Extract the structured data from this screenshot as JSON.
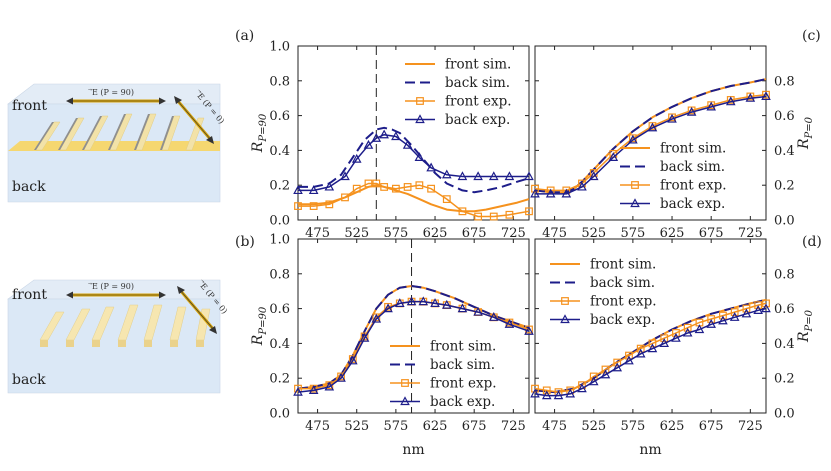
{
  "illustrations": [
    {
      "front_label": "front",
      "back_label": "back",
      "arrow_h_label": "⃗E (P = 90)",
      "arrow_d_label": "⃗E (P = 0)",
      "style": "embedded"
    },
    {
      "front_label": "front",
      "back_label": "back",
      "arrow_h_label": "⃗E (P = 90)",
      "arrow_d_label": "⃗E (P = 0)",
      "style": "raised"
    }
  ],
  "colors": {
    "front": "#f5921e",
    "back": "#1d1d8a",
    "axes": "#222222"
  },
  "chart_data": [
    {
      "panel": "(a)",
      "type": "line",
      "xlabel": "",
      "ylabel": "R_{P=90}",
      "xlim": [
        450,
        745
      ],
      "ylim": [
        0,
        1.0
      ],
      "xticks": [
        475,
        525,
        575,
        625,
        675,
        725
      ],
      "yticks": [
        0.0,
        0.2,
        0.4,
        0.6,
        0.8,
        1.0
      ],
      "ytick_labels": [
        "0.0",
        "0.2",
        "0.4",
        "0.6",
        "0.8",
        "1.0"
      ],
      "vline": 550,
      "legend": "top-right",
      "series": [
        {
          "name": "front sim.",
          "style": "solid",
          "color": "front",
          "x": [
            450,
            470,
            490,
            510,
            525,
            540,
            550,
            560,
            575,
            590,
            605,
            620,
            640,
            660,
            675,
            690,
            710,
            730,
            745
          ],
          "y": [
            0.09,
            0.09,
            0.1,
            0.13,
            0.16,
            0.19,
            0.2,
            0.19,
            0.17,
            0.15,
            0.12,
            0.09,
            0.06,
            0.05,
            0.05,
            0.06,
            0.08,
            0.1,
            0.12
          ]
        },
        {
          "name": "back sim.",
          "style": "dashed",
          "color": "back",
          "x": [
            450,
            470,
            490,
            505,
            520,
            535,
            550,
            560,
            570,
            580,
            595,
            610,
            625,
            640,
            660,
            675,
            690,
            710,
            730,
            745
          ],
          "y": [
            0.19,
            0.19,
            0.21,
            0.26,
            0.36,
            0.46,
            0.52,
            0.53,
            0.52,
            0.5,
            0.43,
            0.35,
            0.27,
            0.21,
            0.17,
            0.16,
            0.17,
            0.19,
            0.22,
            0.24
          ]
        },
        {
          "name": "front exp.",
          "style": "markers-square",
          "color": "front",
          "x": [
            450,
            470,
            490,
            510,
            525,
            540,
            550,
            560,
            575,
            590,
            605,
            620,
            640,
            660,
            680,
            700,
            720,
            745
          ],
          "y": [
            0.08,
            0.08,
            0.09,
            0.13,
            0.18,
            0.21,
            0.21,
            0.19,
            0.18,
            0.19,
            0.2,
            0.18,
            0.12,
            0.05,
            0.02,
            0.02,
            0.03,
            0.05
          ]
        },
        {
          "name": "back exp.",
          "style": "markers-triangle",
          "color": "back",
          "x": [
            450,
            470,
            490,
            510,
            525,
            540,
            550,
            560,
            575,
            590,
            605,
            620,
            640,
            660,
            680,
            700,
            720,
            745
          ],
          "y": [
            0.17,
            0.17,
            0.19,
            0.25,
            0.35,
            0.43,
            0.47,
            0.49,
            0.48,
            0.43,
            0.36,
            0.3,
            0.26,
            0.25,
            0.25,
            0.25,
            0.25,
            0.25
          ]
        }
      ]
    },
    {
      "panel": "(c)",
      "type": "line",
      "xlabel": "",
      "ylabel": "R_{P=0}",
      "xlim": [
        450,
        745
      ],
      "ylim": [
        0,
        1.0
      ],
      "xticks": [
        475,
        525,
        575,
        625,
        675,
        725
      ],
      "yticks": [
        0.0,
        0.2,
        0.4,
        0.6,
        0.8
      ],
      "ytick_labels": [
        "0.0",
        "0.2",
        "0.4",
        "0.6",
        "0.8"
      ],
      "yaxis_side": "right",
      "legend": "bottom-right",
      "series": [
        {
          "name": "front sim.",
          "style": "solid",
          "color": "front",
          "x": [
            450,
            470,
            490,
            500,
            510,
            525,
            550,
            575,
            600,
            625,
            650,
            675,
            700,
            725,
            745
          ],
          "y": [
            0.17,
            0.16,
            0.16,
            0.18,
            0.22,
            0.29,
            0.41,
            0.51,
            0.59,
            0.65,
            0.7,
            0.74,
            0.77,
            0.79,
            0.81
          ]
        },
        {
          "name": "back sim.",
          "style": "dashed",
          "color": "back",
          "x": [
            450,
            470,
            490,
            500,
            510,
            525,
            550,
            575,
            600,
            625,
            650,
            675,
            700,
            725,
            745
          ],
          "y": [
            0.17,
            0.16,
            0.16,
            0.18,
            0.22,
            0.29,
            0.41,
            0.51,
            0.59,
            0.65,
            0.7,
            0.74,
            0.77,
            0.79,
            0.81
          ]
        },
        {
          "name": "front exp.",
          "style": "markers-square",
          "color": "front",
          "x": [
            450,
            470,
            490,
            510,
            525,
            550,
            575,
            600,
            625,
            650,
            675,
            700,
            725,
            745
          ],
          "y": [
            0.18,
            0.17,
            0.17,
            0.21,
            0.27,
            0.38,
            0.47,
            0.54,
            0.59,
            0.63,
            0.66,
            0.69,
            0.71,
            0.72
          ]
        },
        {
          "name": "back exp.",
          "style": "markers-triangle",
          "color": "back",
          "x": [
            450,
            470,
            490,
            510,
            525,
            550,
            575,
            600,
            625,
            650,
            675,
            700,
            725,
            745
          ],
          "y": [
            0.15,
            0.15,
            0.15,
            0.19,
            0.25,
            0.36,
            0.46,
            0.53,
            0.58,
            0.62,
            0.65,
            0.68,
            0.7,
            0.71
          ]
        }
      ]
    },
    {
      "panel": "(b)",
      "type": "line",
      "xlabel": "nm",
      "ylabel": "R_{P=90}",
      "xlim": [
        450,
        745
      ],
      "ylim": [
        0,
        1.0
      ],
      "xticks": [
        475,
        525,
        575,
        625,
        675,
        725
      ],
      "yticks": [
        0.0,
        0.2,
        0.4,
        0.6,
        0.8,
        1.0
      ],
      "ytick_labels": [
        "0.0",
        "0.2",
        "0.4",
        "0.6",
        "0.8",
        "1.0"
      ],
      "vline": 595,
      "legend": "bottom-right",
      "series": [
        {
          "name": "front sim.",
          "style": "solid",
          "color": "front",
          "x": [
            450,
            470,
            490,
            505,
            520,
            535,
            550,
            565,
            580,
            595,
            610,
            625,
            650,
            675,
            700,
            725,
            745
          ],
          "y": [
            0.14,
            0.15,
            0.17,
            0.22,
            0.33,
            0.47,
            0.6,
            0.68,
            0.72,
            0.73,
            0.72,
            0.7,
            0.66,
            0.61,
            0.56,
            0.52,
            0.49
          ]
        },
        {
          "name": "back sim.",
          "style": "dashed",
          "color": "back",
          "x": [
            450,
            470,
            490,
            505,
            520,
            535,
            550,
            565,
            580,
            595,
            610,
            625,
            650,
            675,
            700,
            725,
            745
          ],
          "y": [
            0.14,
            0.15,
            0.17,
            0.22,
            0.33,
            0.47,
            0.6,
            0.68,
            0.72,
            0.73,
            0.72,
            0.7,
            0.66,
            0.61,
            0.56,
            0.52,
            0.49
          ]
        },
        {
          "name": "front exp.",
          "style": "markers-square",
          "color": "front",
          "x": [
            450,
            470,
            490,
            505,
            520,
            535,
            550,
            565,
            580,
            595,
            610,
            625,
            640,
            660,
            680,
            700,
            720,
            745
          ],
          "y": [
            0.14,
            0.14,
            0.16,
            0.21,
            0.31,
            0.44,
            0.55,
            0.61,
            0.63,
            0.64,
            0.64,
            0.63,
            0.62,
            0.6,
            0.58,
            0.55,
            0.52,
            0.48
          ]
        },
        {
          "name": "back exp.",
          "style": "markers-triangle",
          "color": "back",
          "x": [
            450,
            470,
            490,
            505,
            520,
            535,
            550,
            565,
            580,
            595,
            610,
            625,
            640,
            660,
            680,
            700,
            720,
            745
          ],
          "y": [
            0.12,
            0.13,
            0.15,
            0.2,
            0.3,
            0.43,
            0.54,
            0.6,
            0.63,
            0.64,
            0.64,
            0.63,
            0.62,
            0.6,
            0.58,
            0.55,
            0.51,
            0.47
          ]
        }
      ]
    },
    {
      "panel": "(d)",
      "type": "line",
      "xlabel": "nm",
      "ylabel": "R_{P=0}",
      "xlim": [
        450,
        745
      ],
      "ylim": [
        0,
        1.0
      ],
      "xticks": [
        475,
        525,
        575,
        625,
        675,
        725
      ],
      "yticks": [
        0.0,
        0.2,
        0.4,
        0.6,
        0.8
      ],
      "ytick_labels": [
        "0.0",
        "0.2",
        "0.4",
        "0.6",
        "0.8"
      ],
      "yaxis_side": "right",
      "legend": "top-left",
      "series": [
        {
          "name": "front sim.",
          "style": "solid",
          "color": "front",
          "x": [
            450,
            475,
            500,
            525,
            550,
            575,
            600,
            625,
            650,
            675,
            700,
            725,
            745
          ],
          "y": [
            0.13,
            0.12,
            0.14,
            0.2,
            0.28,
            0.35,
            0.42,
            0.48,
            0.53,
            0.57,
            0.6,
            0.63,
            0.65
          ]
        },
        {
          "name": "back sim.",
          "style": "dashed",
          "color": "back",
          "x": [
            450,
            475,
            500,
            525,
            550,
            575,
            600,
            625,
            650,
            675,
            700,
            725,
            745
          ],
          "y": [
            0.13,
            0.12,
            0.14,
            0.2,
            0.28,
            0.35,
            0.42,
            0.48,
            0.53,
            0.57,
            0.6,
            0.63,
            0.65
          ]
        },
        {
          "name": "front exp.",
          "style": "markers-square",
          "color": "front",
          "x": [
            450,
            465,
            480,
            495,
            510,
            525,
            540,
            555,
            570,
            585,
            600,
            615,
            630,
            645,
            660,
            675,
            690,
            705,
            720,
            735,
            745
          ],
          "y": [
            0.14,
            0.13,
            0.12,
            0.13,
            0.16,
            0.21,
            0.25,
            0.29,
            0.33,
            0.37,
            0.4,
            0.43,
            0.46,
            0.49,
            0.52,
            0.54,
            0.56,
            0.58,
            0.6,
            0.62,
            0.63
          ]
        },
        {
          "name": "back exp.",
          "style": "markers-triangle",
          "color": "back",
          "x": [
            450,
            465,
            480,
            495,
            510,
            525,
            540,
            555,
            570,
            585,
            600,
            615,
            630,
            645,
            660,
            675,
            690,
            705,
            720,
            735,
            745
          ],
          "y": [
            0.11,
            0.1,
            0.1,
            0.11,
            0.14,
            0.18,
            0.22,
            0.26,
            0.3,
            0.34,
            0.37,
            0.4,
            0.43,
            0.46,
            0.48,
            0.51,
            0.53,
            0.55,
            0.57,
            0.59,
            0.6
          ]
        }
      ]
    }
  ]
}
